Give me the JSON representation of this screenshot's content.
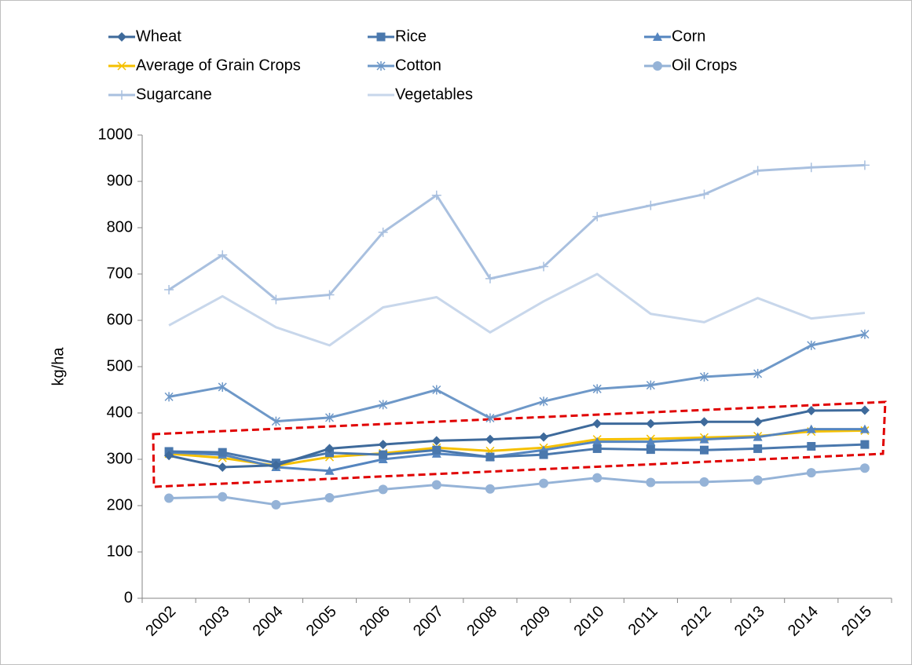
{
  "chart_data": {
    "type": "line",
    "y_label": "kg/ha",
    "categories": [
      "2002",
      "2003",
      "2004",
      "2005",
      "2006",
      "2007",
      "2008",
      "2009",
      "2010",
      "2011",
      "2012",
      "2013",
      "2014",
      "2015"
    ],
    "series": [
      {
        "name": "Wheat",
        "color": "#3e6a9b",
        "marker": "diamond",
        "values": [
          308,
          283,
          287,
          323,
          332,
          340,
          343,
          348,
          377,
          377,
          381,
          381,
          405,
          406
        ]
      },
      {
        "name": "Rice",
        "color": "#4a78ad",
        "marker": "square",
        "values": [
          317,
          315,
          292,
          314,
          310,
          320,
          305,
          310,
          323,
          321,
          320,
          323,
          328,
          332
        ]
      },
      {
        "name": "Corn",
        "color": "#5585bf",
        "marker": "triangle",
        "values": [
          315,
          310,
          283,
          275,
          300,
          312,
          305,
          320,
          338,
          338,
          343,
          348,
          365,
          365
        ]
      },
      {
        "name": "Average of Grain Crops",
        "color": "#f5c000",
        "marker": "x",
        "values": [
          312,
          303,
          286,
          305,
          313,
          325,
          318,
          325,
          343,
          344,
          347,
          350,
          360,
          362
        ]
      },
      {
        "name": "Cotton",
        "color": "#6e98c8",
        "marker": "asterisk",
        "values": [
          435,
          456,
          382,
          390,
          418,
          450,
          389,
          425,
          452,
          460,
          478,
          485,
          546,
          570
        ]
      },
      {
        "name": "Oil Crops",
        "color": "#95b3d7",
        "marker": "circle",
        "values": [
          216,
          219,
          202,
          217,
          235,
          245,
          236,
          248,
          260,
          250,
          251,
          255,
          271,
          281
        ]
      },
      {
        "name": "Sugarcane",
        "color": "#a9c0df",
        "marker": "plus",
        "values": [
          666,
          741,
          645,
          655,
          790,
          870,
          690,
          716,
          824,
          848,
          872,
          923,
          930,
          935
        ]
      },
      {
        "name": "Vegetables",
        "color": "#c8d7eb",
        "marker": "none",
        "values": [
          589,
          652,
          585,
          546,
          628,
          650,
          574,
          641,
          700,
          614,
          596,
          648,
          604,
          616
        ]
      }
    ],
    "ylim": [
      0,
      1000
    ],
    "yticks": [
      0,
      100,
      200,
      300,
      400,
      500,
      600,
      700,
      800,
      900,
      1000
    ],
    "legend": "top"
  }
}
